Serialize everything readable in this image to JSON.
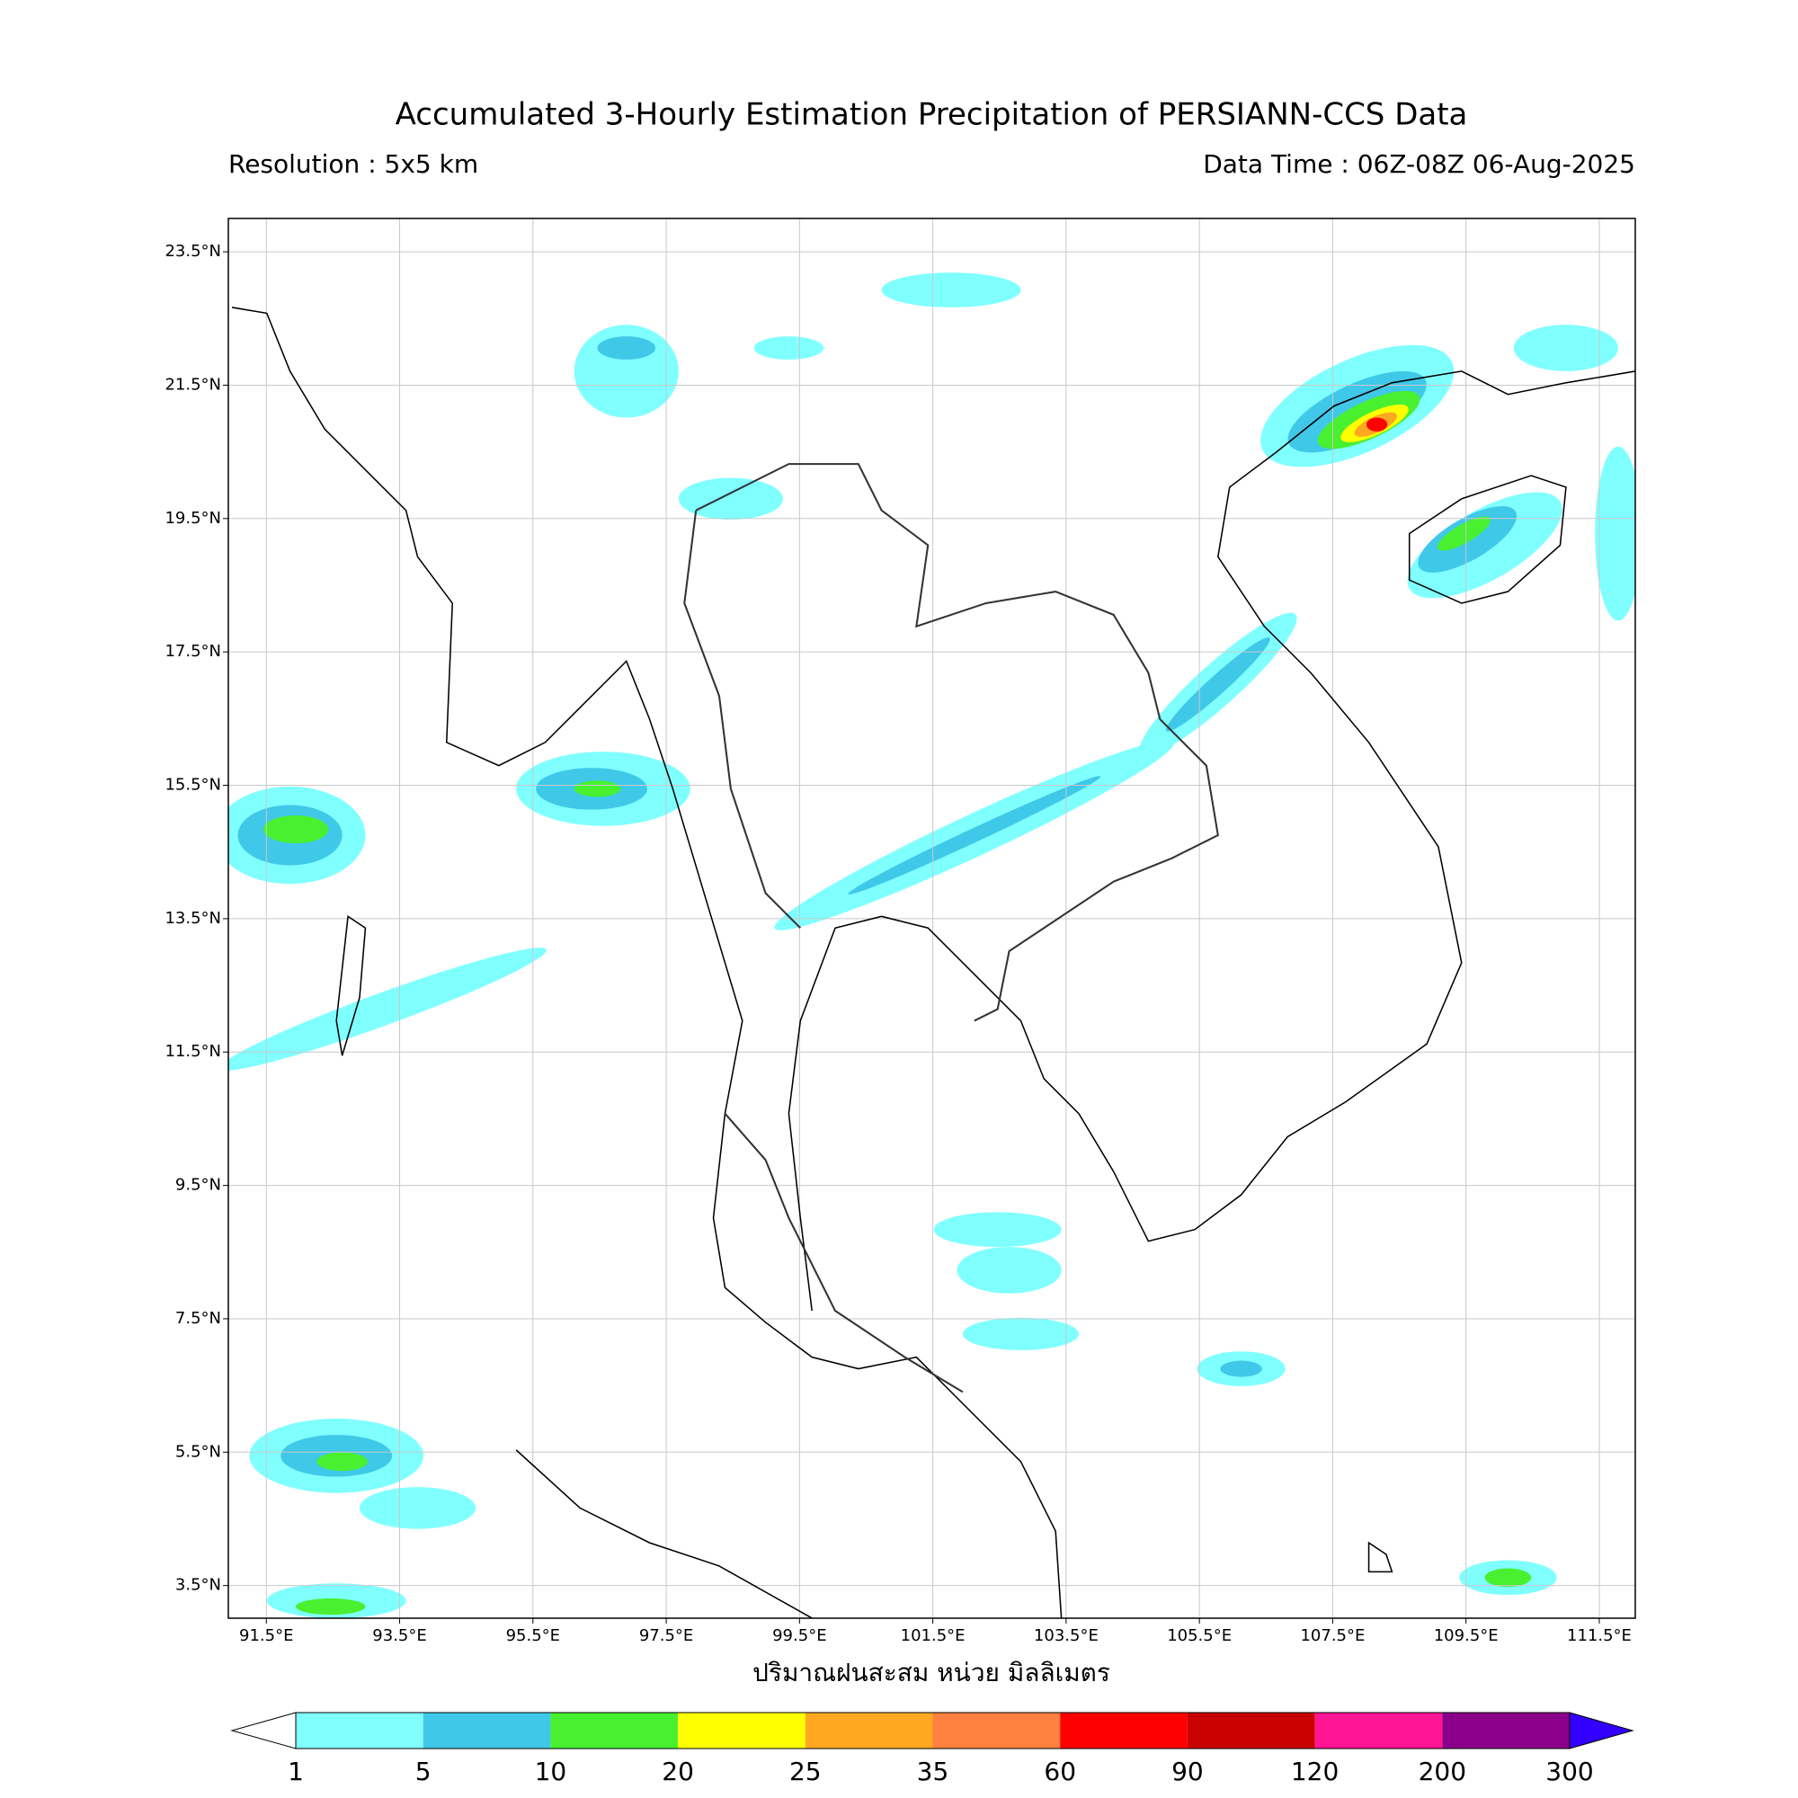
{
  "map": {
    "title": "Accumulated 3-Hourly Estimation Precipitation of PERSIANN-CCS Data",
    "resolution": "Resolution : 5x5 km",
    "data_time": "Data Time : 06Z-08Z 06-Aug-2025",
    "xlabel": "ปริมาณฝนสะสม หน่วย มิลลิเมตร",
    "xlim": [
      90.93,
      112.04
    ],
    "ylim": [
      3.01,
      24.0
    ],
    "xticks": [
      {
        "value": 91.5,
        "label": "91.5°E"
      },
      {
        "value": 93.5,
        "label": "93.5°E"
      },
      {
        "value": 95.5,
        "label": "95.5°E"
      },
      {
        "value": 97.5,
        "label": "97.5°E"
      },
      {
        "value": 99.5,
        "label": "99.5°E"
      },
      {
        "value": 101.5,
        "label": "101.5°E"
      },
      {
        "value": 103.5,
        "label": "103.5°E"
      },
      {
        "value": 105.5,
        "label": "105.5°E"
      },
      {
        "value": 107.5,
        "label": "107.5°E"
      },
      {
        "value": 109.5,
        "label": "109.5°E"
      },
      {
        "value": 111.5,
        "label": "111.5°E"
      }
    ],
    "yticks": [
      {
        "value": 3.5,
        "label": "3.5°N"
      },
      {
        "value": 5.5,
        "label": "5.5°N"
      },
      {
        "value": 7.5,
        "label": "7.5°N"
      },
      {
        "value": 9.5,
        "label": "9.5°N"
      },
      {
        "value": 11.5,
        "label": "11.5°N"
      },
      {
        "value": 13.5,
        "label": "13.5°N"
      },
      {
        "value": 15.5,
        "label": "15.5°N"
      },
      {
        "value": 17.5,
        "label": "17.5°N"
      },
      {
        "value": 19.5,
        "label": "19.5°N"
      },
      {
        "value": 21.5,
        "label": "21.5°N"
      },
      {
        "value": 23.5,
        "label": "23.5°N"
      }
    ],
    "grid": true,
    "colorbar": {
      "levels": [
        1,
        5,
        10,
        20,
        25,
        35,
        60,
        90,
        120,
        200,
        300
      ],
      "colors": [
        "#80ffff",
        "#40c8e8",
        "#48f030",
        "#ffff00",
        "#ffa820",
        "#ff8040",
        "#ff0000",
        "#c80000",
        "#ff1493",
        "#8b008b"
      ],
      "under_color": "#ffffff",
      "over_color": "#3300ff"
    }
  }
}
